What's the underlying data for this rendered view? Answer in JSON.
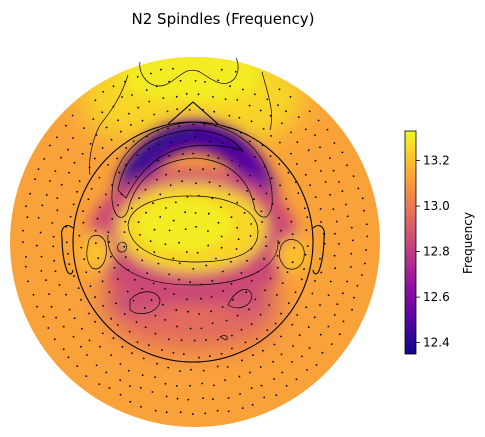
{
  "chart_data": {
    "type": "heatmap",
    "subtype": "eeg-topomap",
    "title": "N2 Spindles (Frequency)",
    "colormap": "plasma",
    "colorbar": {
      "label": "Frequency",
      "vmin": 12.35,
      "vmax": 13.33,
      "ticks": [
        12.4,
        12.6,
        12.8,
        13.0,
        13.2
      ],
      "tick_labels": [
        "12.4",
        "12.6",
        "12.8",
        "13.0",
        "13.2"
      ],
      "placement": "right"
    },
    "regions": [
      {
        "name": "background",
        "value": 13.12
      },
      {
        "name": "frontal-left",
        "value": 13.25
      },
      {
        "name": "frontal-right",
        "value": 13.25
      },
      {
        "name": "frontal-pole",
        "value": 13.3
      },
      {
        "name": "frontal-arc-band",
        "value": 12.5
      },
      {
        "name": "frontal-arc-core-left",
        "value": 12.36
      },
      {
        "name": "frontal-arc-core-right",
        "value": 12.4
      },
      {
        "name": "central",
        "value": 13.25
      },
      {
        "name": "central-core",
        "value": 13.3
      },
      {
        "name": "lateral-temporal-left",
        "value": 13.2
      },
      {
        "name": "lateral-temporal-right",
        "value": 13.2
      },
      {
        "name": "parietal-ring",
        "value": 12.85
      },
      {
        "name": "parieto-occipital-left",
        "value": 12.78
      },
      {
        "name": "parieto-occipital-right",
        "value": 12.78
      },
      {
        "name": "occipital",
        "value": 12.95
      }
    ]
  }
}
